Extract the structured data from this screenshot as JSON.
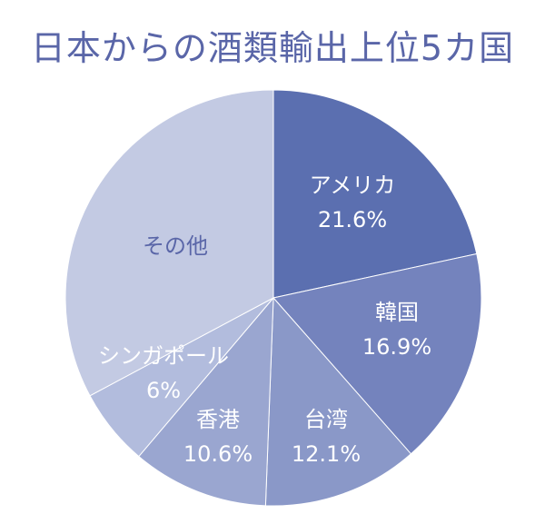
{
  "chart_data": {
    "type": "pie",
    "title": "日本からの酒類輸出上位5カ国",
    "slices": [
      {
        "label": "アメリカ",
        "value_label": "21.6%",
        "value": 21.6,
        "color": "#5b6fb0",
        "text_color": "#ffffff"
      },
      {
        "label": "韓国",
        "value_label": "16.9%",
        "value": 16.9,
        "color": "#7483bd",
        "text_color": "#ffffff"
      },
      {
        "label": "台湾",
        "value_label": "12.1%",
        "value": 12.1,
        "color": "#8a98c8",
        "text_color": "#ffffff"
      },
      {
        "label": "香港",
        "value_label": "10.6%",
        "value": 10.6,
        "color": "#9aa6d0",
        "text_color": "#ffffff"
      },
      {
        "label": "シンガポール",
        "value_label": "6%",
        "value": 6.0,
        "color": "#b2bcdd",
        "text_color": "#ffffff"
      },
      {
        "label": "その他",
        "value_label": "",
        "value": 32.8,
        "color": "#c3cae3",
        "text_color": "#5a66a8"
      }
    ]
  }
}
